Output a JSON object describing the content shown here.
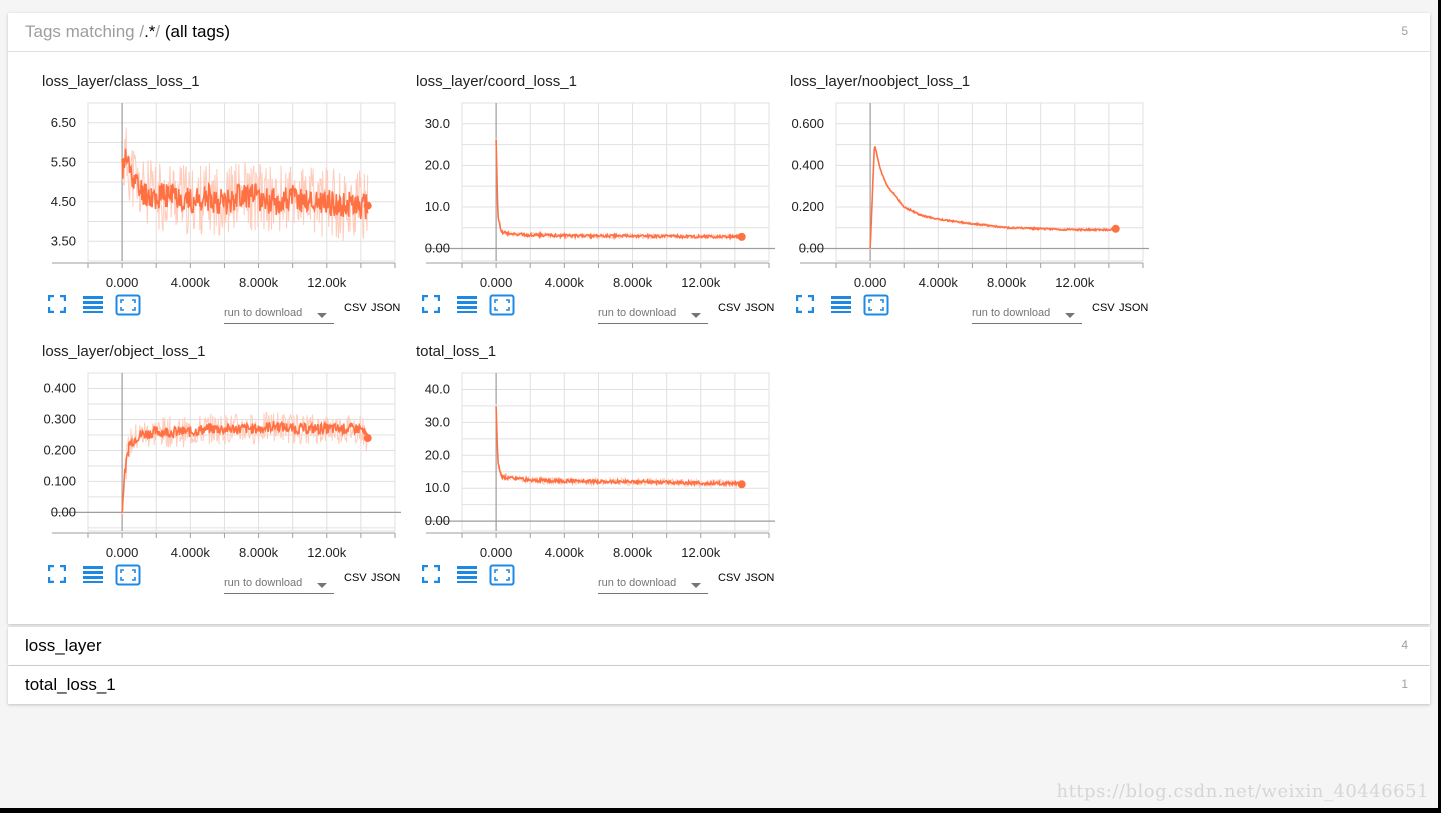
{
  "tag_filter": {
    "prefix": "Tags matching /",
    "pattern": ".*",
    "suffix": "/",
    "note": "(all tags)",
    "count": "5"
  },
  "toolbar": {
    "run_select_placeholder": "run to download",
    "csv_label": "CSV",
    "json_label": "JSON"
  },
  "categories": [
    {
      "name": "loss_layer",
      "count": "4"
    },
    {
      "name": "total_loss_1",
      "count": "1"
    }
  ],
  "watermark": "https://blog.csdn.net/weixin_40446651",
  "colors": {
    "line": "#ff7043",
    "line_light": "#ffccbc",
    "icon": "#1e88e5",
    "grid": "#dddddd"
  },
  "chart_data": [
    {
      "type": "line",
      "title": "loss_layer/class_loss_1",
      "x_ticks": [
        "0.000",
        "4.000k",
        "8.000k",
        "12.00k"
      ],
      "y_ticks": [
        "3.50",
        "4.50",
        "5.50",
        "6.50"
      ],
      "xlim": [
        -2000,
        16000
      ],
      "ylim": [
        3.0,
        7.0
      ],
      "x": [
        0,
        200,
        1000,
        2000,
        3000,
        4000,
        5000,
        6000,
        7000,
        8000,
        9000,
        10000,
        11000,
        12000,
        13000,
        14000,
        14400
      ],
      "y": [
        5.3,
        5.6,
        4.8,
        4.6,
        4.7,
        4.5,
        4.6,
        4.5,
        4.7,
        4.6,
        4.5,
        4.6,
        4.5,
        4.5,
        4.4,
        4.4,
        4.4
      ],
      "noise": 0.35,
      "raw_noise": 0.9
    },
    {
      "type": "line",
      "title": "loss_layer/coord_loss_1",
      "x_ticks": [
        "0.000",
        "4.000k",
        "8.000k",
        "12.00k"
      ],
      "y_ticks": [
        "0.00",
        "10.0",
        "20.0",
        "30.0"
      ],
      "xlim": [
        -2000,
        16000
      ],
      "ylim": [
        -3.0,
        35.0
      ],
      "x": [
        0,
        100,
        300,
        800,
        2000,
        4000,
        6000,
        8000,
        10000,
        12000,
        14000,
        14400
      ],
      "y": [
        26.0,
        8.0,
        4.0,
        3.5,
        3.3,
        3.1,
        3.0,
        3.0,
        2.9,
        2.9,
        2.8,
        2.8
      ],
      "noise": 0.35,
      "raw_noise": 0.6
    },
    {
      "type": "line",
      "title": "loss_layer/noobject_loss_1",
      "x_ticks": [
        "0.000",
        "4.000k",
        "8.000k",
        "12.00k"
      ],
      "y_ticks": [
        "0.00",
        "0.200",
        "0.400",
        "0.600"
      ],
      "xlim": [
        -2000,
        16000
      ],
      "ylim": [
        -0.06,
        0.7
      ],
      "x": [
        0,
        250,
        600,
        1000,
        2000,
        3000,
        4000,
        6000,
        8000,
        10000,
        12000,
        14000,
        14400
      ],
      "y": [
        0.0,
        0.5,
        0.38,
        0.3,
        0.2,
        0.16,
        0.14,
        0.12,
        0.1,
        0.095,
        0.09,
        0.09,
        0.095
      ],
      "noise": 0.004,
      "raw_noise": 0.006
    },
    {
      "type": "line",
      "title": "loss_layer/object_loss_1",
      "x_ticks": [
        "0.000",
        "4.000k",
        "8.000k",
        "12.00k"
      ],
      "y_ticks": [
        "0.00",
        "0.100",
        "0.200",
        "0.300",
        "0.400"
      ],
      "xlim": [
        -2000,
        16000
      ],
      "ylim": [
        -0.06,
        0.45
      ],
      "x": [
        0,
        100,
        400,
        1000,
        2000,
        3000,
        4000,
        5000,
        6000,
        7000,
        8000,
        9000,
        10000,
        11000,
        12000,
        13000,
        14000,
        14400
      ],
      "y": [
        0.0,
        0.1,
        0.22,
        0.25,
        0.26,
        0.26,
        0.26,
        0.27,
        0.27,
        0.27,
        0.27,
        0.28,
        0.27,
        0.27,
        0.27,
        0.27,
        0.27,
        0.24
      ],
      "noise": 0.018,
      "raw_noise": 0.05
    },
    {
      "type": "line",
      "title": "total_loss_1",
      "x_ticks": [
        "0.000",
        "4.000k",
        "8.000k",
        "12.00k"
      ],
      "y_ticks": [
        "0.00",
        "10.0",
        "20.0",
        "30.0",
        "40.0"
      ],
      "xlim": [
        -2000,
        16000
      ],
      "ylim": [
        -3.0,
        45.0
      ],
      "x": [
        0,
        100,
        300,
        800,
        2000,
        4000,
        6000,
        8000,
        10000,
        12000,
        14000,
        14400
      ],
      "y": [
        35.0,
        18.0,
        13.5,
        13.0,
        12.5,
        12.2,
        12.0,
        12.0,
        11.8,
        11.5,
        11.4,
        11.2
      ],
      "noise": 0.5,
      "raw_noise": 1.2
    }
  ]
}
